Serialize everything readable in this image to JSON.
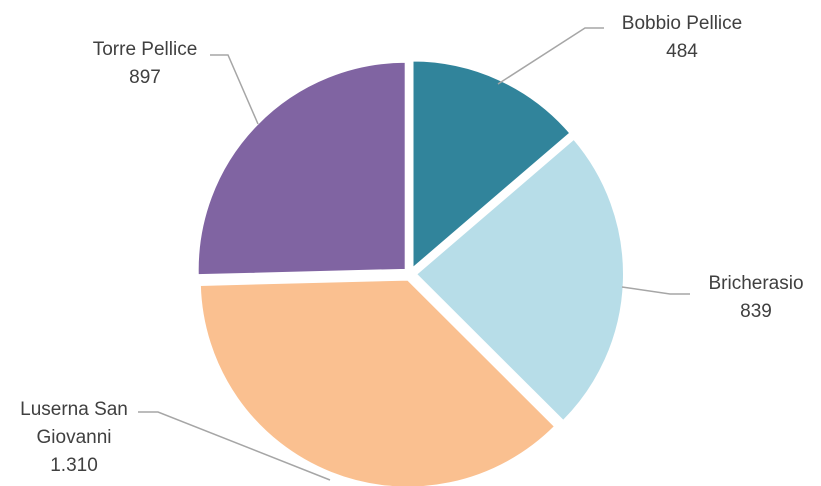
{
  "chart_data": {
    "type": "pie",
    "title": "",
    "slices": [
      {
        "label": "Bobbio Pellice",
        "value_label": "484",
        "value": 484,
        "color": "#31849b"
      },
      {
        "label": "Bricherasio",
        "value_label": "839",
        "value": 839,
        "color": "#b7dde8"
      },
      {
        "label": "Luserna San Giovanni",
        "label_lines": [
          "Luserna San",
          "Giovanni"
        ],
        "value_label": "1.310",
        "value": 1310,
        "color": "#fac090"
      },
      {
        "label": "Torre Pellice",
        "value_label": "897",
        "value": 897,
        "color": "#8064a2"
      }
    ],
    "legend": "none",
    "leader_line_color": "#a6a6a6"
  }
}
